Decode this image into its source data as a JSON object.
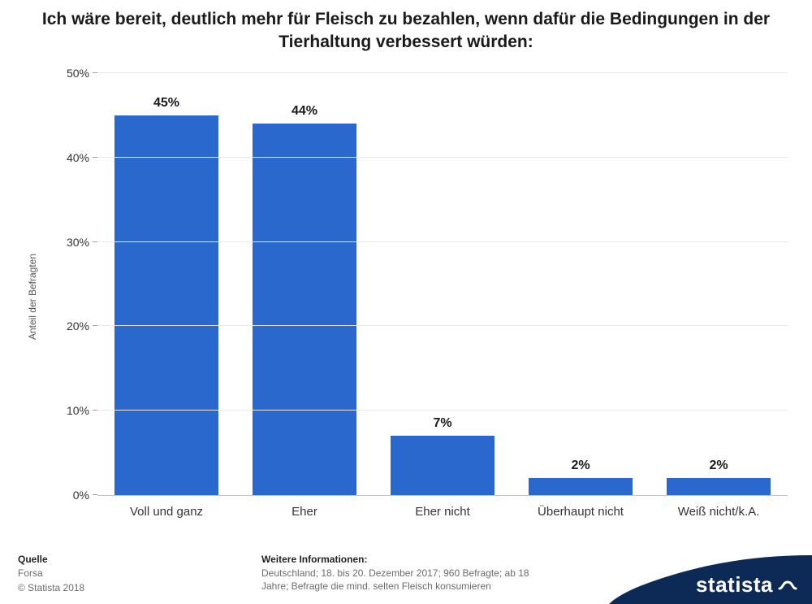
{
  "title": "Ich wäre bereit, deutlich mehr für Fleisch zu bezahlen, wenn dafür die Bedingungen in der Tierhaltung verbessert würden:",
  "chart": {
    "type": "bar",
    "ylabel": "Anteil der Befragten",
    "ylim": [
      0,
      50
    ],
    "ytick_step": 10,
    "yticks": [
      "0%",
      "10%",
      "20%",
      "30%",
      "40%",
      "50%"
    ],
    "categories": [
      "Voll und ganz",
      "Eher",
      "Eher nicht",
      "Überhaupt nicht",
      "Weiß nicht/k.A."
    ],
    "values": [
      45,
      44,
      7,
      2,
      2
    ],
    "value_labels": [
      "45%",
      "44%",
      "7%",
      "2%",
      "2%"
    ],
    "bar_color": "#2a68cd",
    "background_color": "#ffffff",
    "grid_color": "#e6e8ea",
    "axis_font_size": 14,
    "label_font_size": 16,
    "label_font_weight": "700",
    "bar_width_ratio": 0.75
  },
  "footer": {
    "source_title": "Quelle",
    "source_line1": "Forsa",
    "source_line2": "© Statista 2018",
    "info_title": "Weitere Informationen:",
    "info_text": "Deutschland; 18. bis 20. Dezember 2017; 960 Befragte; ab 18 Jahre; Befragte die mind. selten Fleisch konsumieren"
  },
  "branding": {
    "logo_text": "statista",
    "logo_bg": "#0d2a57",
    "logo_fg": "#ffffff"
  }
}
